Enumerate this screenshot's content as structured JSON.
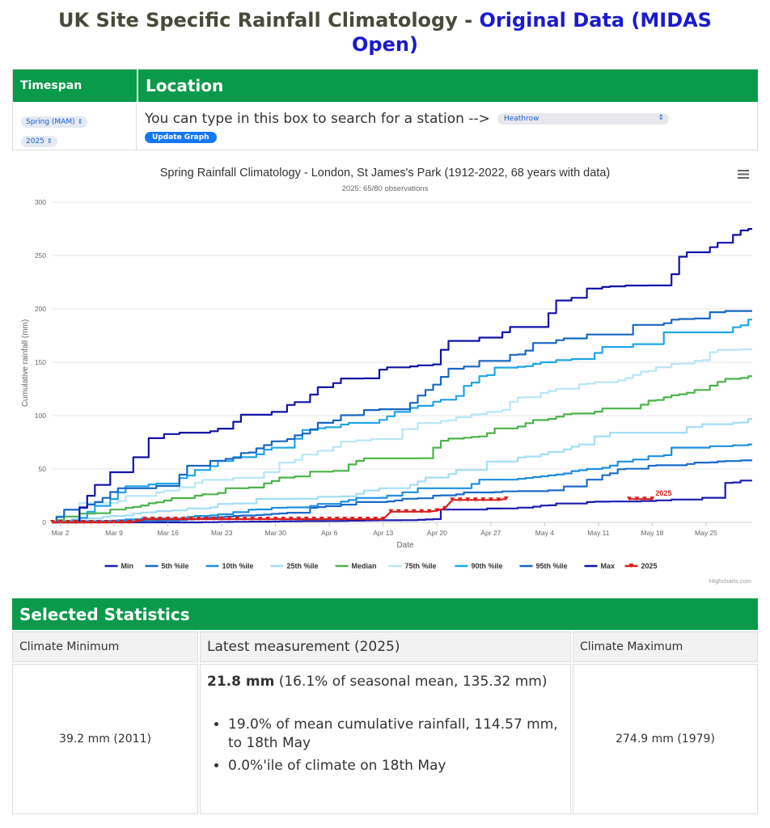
{
  "header": {
    "title_prefix": "UK Site Specific Rainfall Climatology - ",
    "title_link_line1": "Original Data (MIDAS",
    "title_link_line2": "Open)"
  },
  "controls": {
    "timespan_header": "Timespan",
    "location_header": "Location",
    "season_value": "Spring (MAM)",
    "year_value": "2025",
    "search_prompt": "You can type in this box to search for a station -->",
    "station_value": "Heathrow",
    "update_button": "Update Graph"
  },
  "chart": {
    "menu_icon": "hamburger-menu-icon",
    "credit": "Highcharts.com"
  },
  "chart_data": {
    "type": "line",
    "title": "Spring Rainfall Climatology - London, St James's Park (1912-2022, 68 years with data)",
    "subtitle": "2025: 65/80 observations",
    "xlabel": "Date",
    "ylabel": "Cumulative rainfall (mm)",
    "ylim": [
      0,
      300
    ],
    "yticks": [
      0,
      50,
      100,
      150,
      200,
      250,
      300
    ],
    "xticks": [
      "Mar 2",
      "Mar 9",
      "Mar 16",
      "Mar 23",
      "Mar 30",
      "Apr 6",
      "Apr 13",
      "Apr 20",
      "Apr 27",
      "May 4",
      "May 11",
      "May 18",
      "May 25"
    ],
    "xdomain": [
      "Mar 1",
      "May 31"
    ],
    "grid": true,
    "legend_position": "bottom",
    "annotation": "2025",
    "series": [
      {
        "name": "Min",
        "color": "#1b1bb0",
        "points": [
          [
            "Mar 1",
            0
          ],
          [
            "Mar 10",
            0
          ],
          [
            "Mar 20",
            0
          ],
          [
            "Apr 1",
            1
          ],
          [
            "Apr 13",
            2
          ],
          [
            "Apr 20",
            3
          ],
          [
            "Apr 25",
            12
          ],
          [
            "Apr 30",
            13
          ],
          [
            "May 5",
            16
          ],
          [
            "May 10",
            19
          ],
          [
            "May 18",
            20
          ],
          [
            "May 25",
            23
          ],
          [
            "May 28",
            37
          ],
          [
            "May 31",
            39.2
          ]
        ]
      },
      {
        "name": "5th %ile",
        "color": "#1a6bc9",
        "points": [
          [
            "Mar 1",
            0
          ],
          [
            "Mar 10",
            1
          ],
          [
            "Mar 20",
            3
          ],
          [
            "Apr 1",
            9
          ],
          [
            "Apr 13",
            19
          ],
          [
            "Apr 20",
            25
          ],
          [
            "Apr 25",
            28
          ],
          [
            "Apr 30",
            29
          ],
          [
            "May 5",
            30
          ],
          [
            "May 10",
            40
          ],
          [
            "May 18",
            53
          ],
          [
            "May 25",
            56
          ],
          [
            "May 31",
            58
          ]
        ]
      },
      {
        "name": "10th %ile",
        "color": "#1c8fe0",
        "points": [
          [
            "Mar 1",
            0
          ],
          [
            "Mar 10",
            2
          ],
          [
            "Mar 20",
            6
          ],
          [
            "Apr 1",
            14
          ],
          [
            "Apr 13",
            23
          ],
          [
            "Apr 20",
            32
          ],
          [
            "Apr 25",
            36
          ],
          [
            "Apr 30",
            40
          ],
          [
            "May 5",
            44
          ],
          [
            "May 10",
            50
          ],
          [
            "May 18",
            62
          ],
          [
            "May 25",
            70
          ],
          [
            "May 31",
            73
          ]
        ]
      },
      {
        "name": "25th %ile",
        "color": "#a3ddf4",
        "points": [
          [
            "Mar 1",
            0
          ],
          [
            "Mar 10",
            6
          ],
          [
            "Mar 20",
            13
          ],
          [
            "Apr 1",
            22
          ],
          [
            "Apr 13",
            32
          ],
          [
            "Apr 20",
            42
          ],
          [
            "Apr 25",
            49
          ],
          [
            "Apr 30",
            57
          ],
          [
            "May 5",
            66
          ],
          [
            "May 10",
            73
          ],
          [
            "May 18",
            84
          ],
          [
            "May 25",
            92
          ],
          [
            "May 31",
            97
          ]
        ]
      },
      {
        "name": "Median",
        "color": "#4bb34b",
        "points": [
          [
            "Mar 1",
            0
          ],
          [
            "Mar 10",
            12
          ],
          [
            "Mar 20",
            25
          ],
          [
            "Apr 1",
            42
          ],
          [
            "Apr 13",
            60
          ],
          [
            "Apr 20",
            70
          ],
          [
            "Apr 25",
            80
          ],
          [
            "Apr 30",
            88
          ],
          [
            "May 5",
            97
          ],
          [
            "May 10",
            102
          ],
          [
            "May 18",
            114
          ],
          [
            "May 25",
            124
          ],
          [
            "May 31",
            137
          ]
        ]
      },
      {
        "name": "75th %ile",
        "color": "#b9e6f7",
        "points": [
          [
            "Mar 1",
            0
          ],
          [
            "Mar 10",
            20
          ],
          [
            "Mar 20",
            37
          ],
          [
            "Apr 1",
            56
          ],
          [
            "Apr 13",
            78
          ],
          [
            "Apr 20",
            93
          ],
          [
            "Apr 25",
            101
          ],
          [
            "Apr 30",
            113
          ],
          [
            "May 5",
            123
          ],
          [
            "May 10",
            130
          ],
          [
            "May 18",
            142
          ],
          [
            "May 25",
            152
          ],
          [
            "May 31",
            162
          ]
        ]
      },
      {
        "name": "90th %ile",
        "color": "#20a5e6",
        "points": [
          [
            "Mar 1",
            0
          ],
          [
            "Mar 10",
            28
          ],
          [
            "Mar 20",
            49
          ],
          [
            "Apr 1",
            70
          ],
          [
            "Apr 13",
            96
          ],
          [
            "Apr 20",
            113
          ],
          [
            "Apr 25",
            131
          ],
          [
            "Apr 30",
            145
          ],
          [
            "May 5",
            150
          ],
          [
            "May 10",
            153
          ],
          [
            "May 18",
            167
          ],
          [
            "May 25",
            178
          ],
          [
            "May 31",
            190
          ]
        ]
      },
      {
        "name": "95th %ile",
        "color": "#1767c2",
        "points": [
          [
            "Mar 1",
            0
          ],
          [
            "Mar 10",
            32
          ],
          [
            "Mar 20",
            53
          ],
          [
            "Apr 1",
            78
          ],
          [
            "Apr 13",
            106
          ],
          [
            "Apr 20",
            129
          ],
          [
            "Apr 25",
            146
          ],
          [
            "Apr 30",
            157
          ],
          [
            "May 5",
            168
          ],
          [
            "May 10",
            176
          ],
          [
            "May 18",
            185
          ],
          [
            "May 25",
            191
          ],
          [
            "May 31",
            198
          ]
        ]
      },
      {
        "name": "Max",
        "color": "#1212a8",
        "points": [
          [
            "Mar 1",
            0
          ],
          [
            "Mar 10",
            47
          ],
          [
            "Mar 20",
            84
          ],
          [
            "Apr 1",
            110
          ],
          [
            "Apr 13",
            143
          ],
          [
            "Apr 20",
            148
          ],
          [
            "Apr 25",
            170
          ],
          [
            "Apr 30",
            183
          ],
          [
            "May 5",
            196
          ],
          [
            "May 10",
            219
          ],
          [
            "May 18",
            222
          ],
          [
            "May 25",
            253
          ],
          [
            "May 28",
            262
          ],
          [
            "May 31",
            274.9
          ]
        ]
      },
      {
        "name": "2025",
        "color": "#d81e1e",
        "points": [
          [
            "Mar 1",
            0
          ],
          [
            "Mar 12",
            1
          ],
          [
            "Mar 13",
            3
          ],
          [
            "Apr 12",
            3
          ],
          [
            "Apr 14",
            10
          ],
          [
            "Apr 20",
            11
          ],
          [
            "Apr 21",
            13
          ],
          [
            "Apr 22",
            21
          ],
          [
            "Apr 28",
            21
          ],
          [
            "Apr 29",
            22
          ],
          [
            "Apr 30",
            null
          ],
          [
            "May 15",
            21.8
          ],
          [
            "May 18",
            21.8
          ]
        ]
      }
    ]
  },
  "stats": {
    "section_title": "Selected Statistics",
    "col_min": "Climate Minimum",
    "col_latest": "Latest measurement (2025)",
    "col_max": "Climate Maximum",
    "min_value": "39.2 mm (2011)",
    "latest_value": "21.8 mm",
    "latest_detail": " (16.1% of seasonal mean, 135.32 mm)",
    "bullet_1": "19.0% of mean cumulative rainfall, 114.57 mm, to 18th May",
    "bullet_2": "0.0%'ile of climate on 18th May",
    "max_value": "274.9 mm (1979)"
  }
}
